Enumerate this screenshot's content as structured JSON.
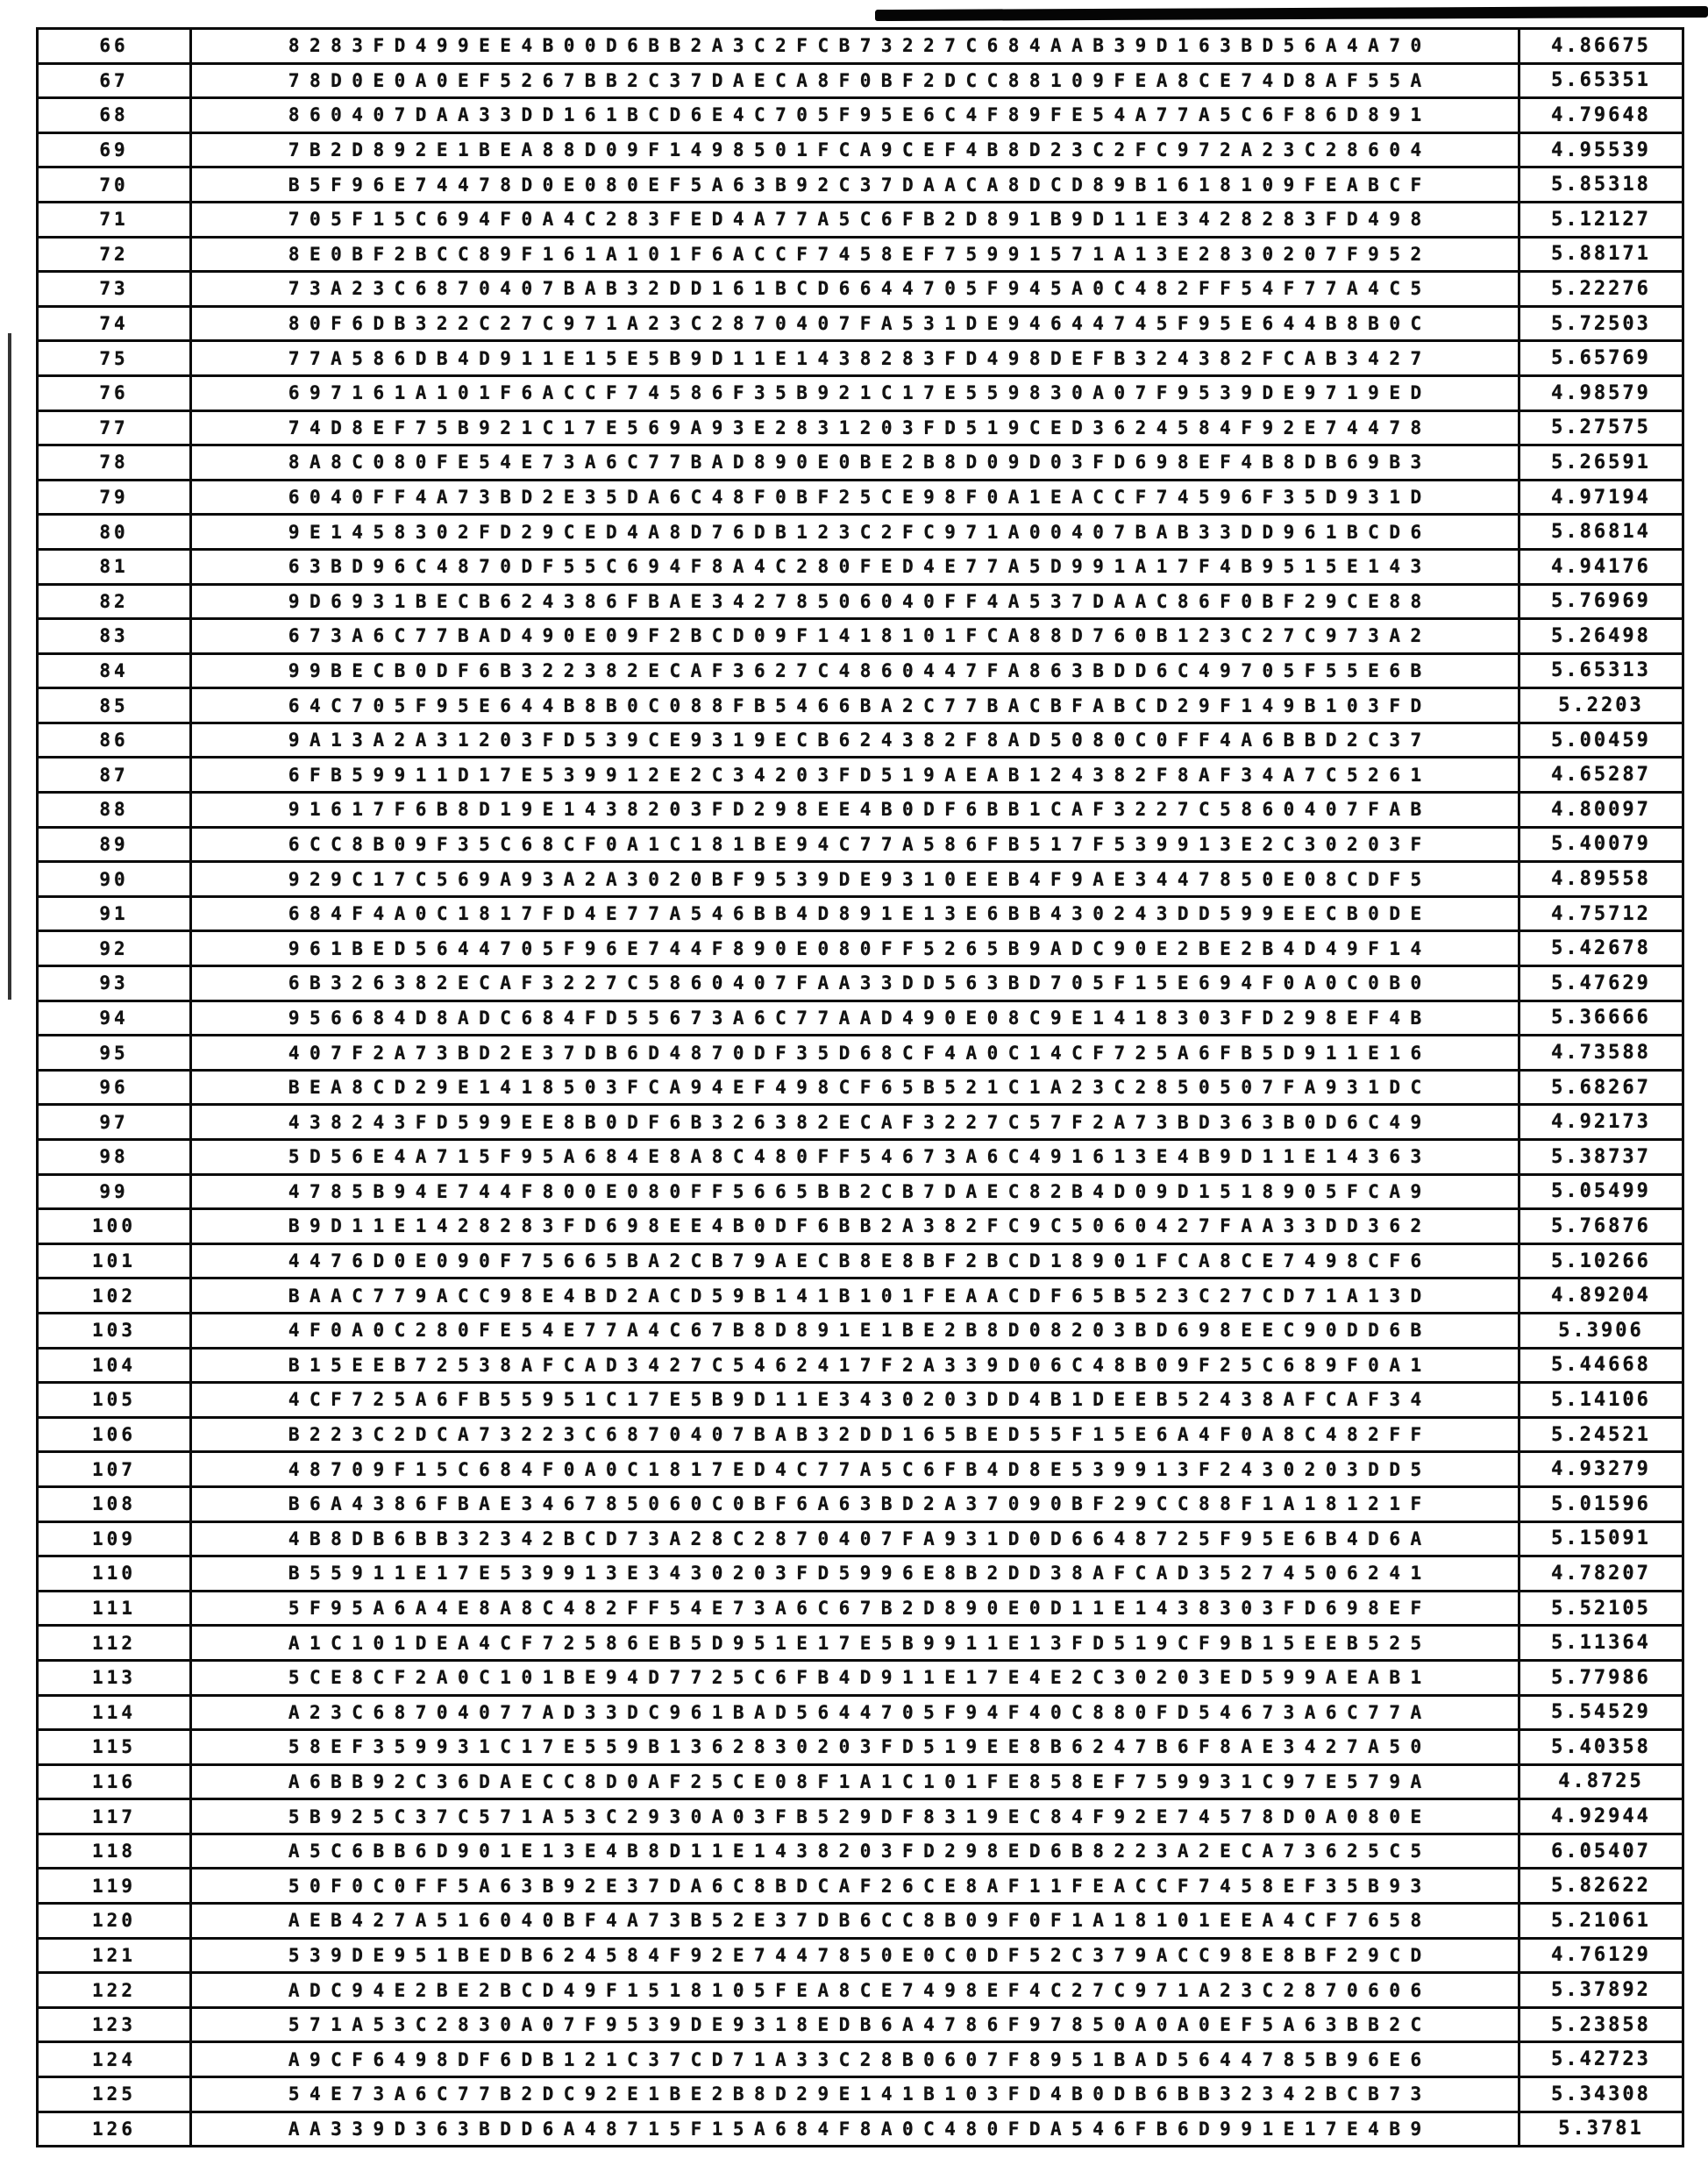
{
  "table": {
    "rows": [
      {
        "index": "66",
        "hex": "8283FD499EE4B00D6BB2A3C2FCB73227C684AAB39D163BD56A4A70",
        "value": "4.86675"
      },
      {
        "index": "67",
        "hex": "78D0E0A0EF5267BB2C37DAECA8F0BF2DCC88109FEA8CE74D8AF55A",
        "value": "5.65351"
      },
      {
        "index": "68",
        "hex": "860407DAA33DD161BCD6E4C705F95E6C4F89FE54A77A5C6F86D891",
        "value": "4.79648"
      },
      {
        "index": "69",
        "hex": "7B2D892E1BEA88D09F1498501FCA9CEF4B8D23C2FC972A23C28604",
        "value": "4.95539"
      },
      {
        "index": "70",
        "hex": "B5F96E74478D0E080EF5A63B92C37DAACA8DCD89B1618109FEABCF",
        "value": "5.85318"
      },
      {
        "index": "71",
        "hex": "705F15C694F0A4C283FED4A77A5C6FB2D891B9D11E3428283FD498",
        "value": "5.12127"
      },
      {
        "index": "72",
        "hex": "8E0BF2BCC89F161A101F6ACCF7458EF75991571A13E2830207F952",
        "value": "5.88171"
      },
      {
        "index": "73",
        "hex": "73A23C6870407BAB32DD161BCD6644705F945A0C482FF54F77A4C5",
        "value": "5.22276"
      },
      {
        "index": "74",
        "hex": "80F6DB322C27C971A23C2870407FA531DE94644745F95E644B8B0C",
        "value": "5.72503"
      },
      {
        "index": "75",
        "hex": "77A586DB4D911E15E5B9D11E1438283FD498DEFB324382FCAB3427",
        "value": "5.65769"
      },
      {
        "index": "76",
        "hex": "697161A101F6ACCF74586F35B921C17E559830A07F9539DE9719ED",
        "value": "4.98579"
      },
      {
        "index": "77",
        "hex": "74D8EF75B921C17E569A93E2831203FD519CED3624584F92E74478",
        "value": "5.27575"
      },
      {
        "index": "78",
        "hex": "8A8C080FE54E73A6C77BAD890E0BE2B8D09D03FD698EF4B8DB69B3",
        "value": "5.26591"
      },
      {
        "index": "79",
        "hex": "6040FF4A73BD2E35DA6C48F0BF25CE98F0A1EACCF74596F35D931D",
        "value": "4.97194"
      },
      {
        "index": "80",
        "hex": "9E1458302FD29CED4A8D76DB123C2FC971A00407BAB33DD961BCD6",
        "value": "5.86814"
      },
      {
        "index": "81",
        "hex": "63BD96C4870DF55C694F8A4C280FED4E77A5D991A17F4B9515E143",
        "value": "4.94176"
      },
      {
        "index": "82",
        "hex": "9D6931BECB624386FBAE34278506040FF4A537DAAC86F0BF29CE88",
        "value": "5.76969"
      },
      {
        "index": "83",
        "hex": "673A6C77BAD490E09F2BCD09F1418101FCA88D760B123C27C973A2",
        "value": "5.26498"
      },
      {
        "index": "84",
        "hex": "99BECB0DF6B322382ECAF3627C4860447FA863BDD6C49705F55E6B",
        "value": "5.65313"
      },
      {
        "index": "85",
        "hex": "64C705F95E644B8B0C088FB5466BA2C77BACBFABCD29F149B103FD",
        "value": "5.2203"
      },
      {
        "index": "86",
        "hex": "9A13A2A31203FD539CE9319ECB624382F8AD5080C0FF4A6BBD2C37",
        "value": "5.00459"
      },
      {
        "index": "87",
        "hex": "6FB59911D17E539912E2C34203FD519AEAB124382F8AF34A7C5261",
        "value": "4.65287"
      },
      {
        "index": "88",
        "hex": "91617F6B8D19E1438203FD298EE4B0DF6BB1CAF3227C5860407FAB",
        "value": "4.80097"
      },
      {
        "index": "89",
        "hex": "6CC8B09F35C68CF0A1C181BE94C77A586FB517F539913E2C30203F",
        "value": "5.40079"
      },
      {
        "index": "90",
        "hex": "929C17C569A93A2A3020BF9539DE9310EEB4F9AE3447850E08CDF5",
        "value": "4.89558"
      },
      {
        "index": "91",
        "hex": "684F4A0C1817FD4E77A546BB4D891E13E6BB430243DD599EECB0DE",
        "value": "4.75712"
      },
      {
        "index": "92",
        "hex": "961BED5644705F96E744F890E080FF5265B9ADC90E2BE2B4D49F14",
        "value": "5.42678"
      },
      {
        "index": "93",
        "hex": "6B326382ECAF3227C5860407FAA33DD563BD705F15E694F0A0C0B0",
        "value": "5.47629"
      },
      {
        "index": "94",
        "hex": "956684D8ADC684FD55673A6C77AAD490E08C9E1418303FD298EF4B",
        "value": "5.36666"
      },
      {
        "index": "95",
        "hex": "407F2A73BD2E37DB6D4870DF35D68CF4A0C14CF725A6FB5D911E16",
        "value": "4.73588"
      },
      {
        "index": "96",
        "hex": "BEA8CD29E1418503FCA94EF498CF65B521C1A23C2850507FA931DC",
        "value": "5.68267"
      },
      {
        "index": "97",
        "hex": "438243FD599EE8B0DF6B326382ECAF3227C57F2A73BD363B0D6C49",
        "value": "4.92173"
      },
      {
        "index": "98",
        "hex": "5D56E4A715F95A684E8A8C480FF54673A6C491613E4B9D11E14363",
        "value": "5.38737"
      },
      {
        "index": "99",
        "hex": "4785B94E744F800E080FF5665BB2CB7DAEC82B4D09D1518905FCA9",
        "value": "5.05499"
      },
      {
        "index": "100",
        "hex": "B9D11E1428283FD698EE4B0DF6BB2A382FC9C5060427FAA33DD362",
        "value": "5.76876"
      },
      {
        "index": "101",
        "hex": "4476D0E090F75665BA2CB79AECB8E8BF2BCD18901FCA8CE7498CF6",
        "value": "5.10266"
      },
      {
        "index": "102",
        "hex": "BAAC779ACC98E4BD2ACD59B141B101FEAACDF65B523C27CD71A13D",
        "value": "4.89204"
      },
      {
        "index": "103",
        "hex": "4F0A0C280FE54E77A4C67B8D891E1BE2B8D08203BD698EEC90DD6B",
        "value": "5.3906"
      },
      {
        "index": "104",
        "hex": "B15EEB72538AFCAD3427C5462417F2A339D06C48B09F25C689F0A1",
        "value": "5.44668"
      },
      {
        "index": "105",
        "hex": "4CF725A6FB55951C17E5B9D11E3430203DD4B1DEEB52438AFCAF34",
        "value": "5.14106"
      },
      {
        "index": "106",
        "hex": "B223C2DCA73223C6870407BAB32DD165BED55F15E6A4F0A8C482FF",
        "value": "5.24521"
      },
      {
        "index": "107",
        "hex": "48709F15C684F0A0C1817ED4C77A5C6FB4D8E539913F2430203DD5",
        "value": "4.93279"
      },
      {
        "index": "108",
        "hex": "B6A4386FBAE346785060C0BF6A63BD2A37090BF29CC88F1A18121F",
        "value": "5.01596"
      },
      {
        "index": "109",
        "hex": "4B8DB6BB32342BCD73A28C2870407FA931D0D6648725F95E6B4D6A",
        "value": "5.15091"
      },
      {
        "index": "110",
        "hex": "B55911E17E539913E3430203FD5996E8B2DD38AFCAD35274506241",
        "value": "4.78207"
      },
      {
        "index": "111",
        "hex": "5F95A6A4E8A8C482FF54E73A6C67B2D890E0D11E1438303FD698EF",
        "value": "5.52105"
      },
      {
        "index": "112",
        "hex": "A1C101DEA4CF72586EB5D951E17E5B9911E13FD519CF9B15EEB525",
        "value": "5.11364"
      },
      {
        "index": "113",
        "hex": "5CE8CF2A0C101BE94D7725C6FB4D911E17E4E2C30203ED599AEAB1",
        "value": "5.77986"
      },
      {
        "index": "114",
        "hex": "A23C68704077AD33DC961BAD5644705F94F40C880FD54673A6C77A",
        "value": "5.54529"
      },
      {
        "index": "115",
        "hex": "58EF359931C17E559B1362830203FD519EE8B6247B6F8AE3427A50",
        "value": "5.40358"
      },
      {
        "index": "116",
        "hex": "A6BB92C36DAECC8D0AF25CE08F1A1C101FE858EF759931C97E579A",
        "value": "4.8725"
      },
      {
        "index": "117",
        "hex": "5B925C37C571A53C2930A03FB529DF8319EC84F92E74578D0A080E",
        "value": "4.92944"
      },
      {
        "index": "118",
        "hex": "A5C6BB6D901E13E4B8D11E1438203FD298ED6B8223A2ECA73625C5",
        "value": "6.05407"
      },
      {
        "index": "119",
        "hex": "50F0C0FF5A63B92E37DA6C8BDCAF26CE8AF11FEACCF7458EF35B93",
        "value": "5.82622"
      },
      {
        "index": "120",
        "hex": "AEB427A516040BF4A73B52E37DB6CC8B09F0F1A18101EEA4CF7658",
        "value": "5.21061"
      },
      {
        "index": "121",
        "hex": "539DE951BEDB624584F92E7447850E0C0DF52C379ACC98E8BF29CD",
        "value": "4.76129"
      },
      {
        "index": "122",
        "hex": "ADC94E2BE2BCD49F1518105FEA8CE7498EF4C27C971A23C2870606",
        "value": "5.37892"
      },
      {
        "index": "123",
        "hex": "571A53C2830A07F9539DE9318EDB6A4786F97850A0A0EF5A63BB2C",
        "value": "5.23858"
      },
      {
        "index": "124",
        "hex": "A9CF6498DF6DB121C37CD71A33C28B0607F8951BAD5644785B96E6",
        "value": "5.42723"
      },
      {
        "index": "125",
        "hex": "54E73A6C77B2DC92E1BE2B8D29E141B103FD4B0DB6BB32342BCB73",
        "value": "5.34308"
      },
      {
        "index": "126",
        "hex": "AA339D363BDD6A48715F15A684F8A0C480FDA546FB6D991E17E4B9",
        "value": "5.3781"
      }
    ]
  }
}
